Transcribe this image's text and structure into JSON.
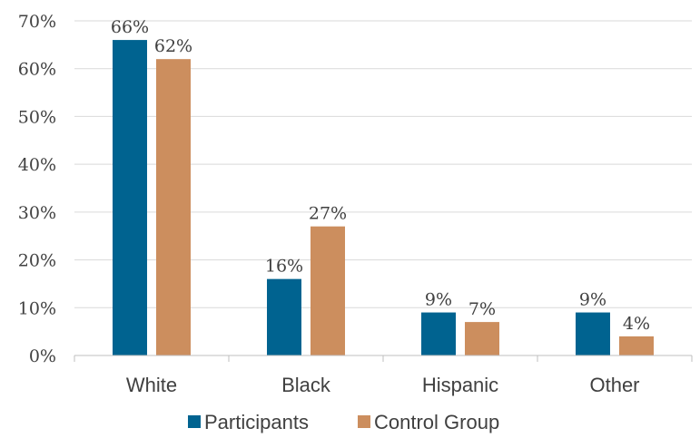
{
  "chart_data": {
    "type": "bar",
    "title": "",
    "xlabel": "",
    "ylabel": "",
    "categories": [
      "White",
      "Black",
      "Hispanic",
      "Other"
    ],
    "series": [
      {
        "name": "Participants",
        "color": "#006390",
        "values": [
          66,
          16,
          9,
          9
        ],
        "labels": [
          "66%",
          "16%",
          "9%",
          "9%"
        ]
      },
      {
        "name": "Control Group",
        "color": "#CC8E5E",
        "values": [
          62,
          27,
          7,
          4
        ],
        "labels": [
          "62%",
          "27%",
          "7%",
          "4%"
        ]
      }
    ],
    "ylim": [
      0,
      70
    ],
    "yticks": [
      0,
      10,
      20,
      30,
      40,
      50,
      60,
      70
    ],
    "ytick_labels": [
      "0%",
      "10%",
      "20%",
      "30%",
      "40%",
      "50%",
      "60%",
      "70%"
    ],
    "grid": true,
    "legend": "bottom"
  }
}
